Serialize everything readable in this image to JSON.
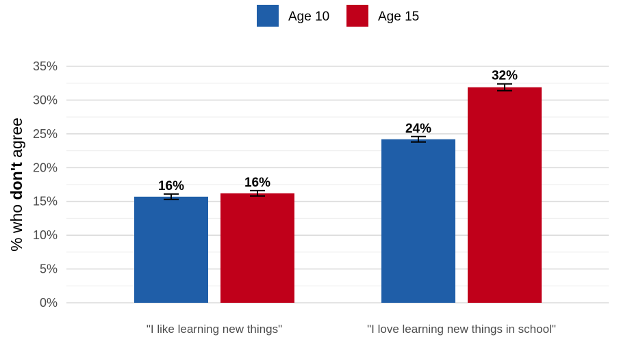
{
  "chart_data": {
    "type": "bar",
    "categories": [
      "\"I like learning new things\"",
      "\"I love learning new things in school\""
    ],
    "series": [
      {
        "name": "Age 10",
        "color": "#1f5ea8",
        "values": [
          15.7,
          24.2
        ],
        "error_low": [
          15.3,
          23.8
        ],
        "error_high": [
          16.1,
          24.6
        ],
        "labels": [
          "16%",
          "24%"
        ]
      },
      {
        "name": "Age 15",
        "color": "#c0001a",
        "values": [
          16.2,
          31.9
        ],
        "error_low": [
          15.8,
          31.4
        ],
        "error_high": [
          16.6,
          32.4
        ],
        "labels": [
          "16%",
          "32%"
        ]
      }
    ],
    "ylabel": {
      "prefix": "% who ",
      "bold": "don't",
      "suffix": " agree"
    },
    "ylim": [
      0,
      35
    ],
    "yticks": [
      0,
      5,
      10,
      15,
      20,
      25,
      30,
      35
    ],
    "ytick_labels": [
      "0%",
      "5%",
      "10%",
      "15%",
      "20%",
      "25%",
      "30%",
      "35%"
    ],
    "grid": true,
    "legend_position": "top-center"
  }
}
